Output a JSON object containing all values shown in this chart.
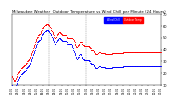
{
  "title": "Milwaukee Weather  Outdoor Temperature\nvs Wind Chill\nper Minute\n(24 Hours)",
  "bg_color": "#ffffff",
  "temp_color": "#ff0000",
  "windchill_color": "#0000ff",
  "legend_temp_label": "Outdoor Temp",
  "legend_wc_label": "Wind Chill",
  "xlim": [
    0,
    1440
  ],
  "ylim": [
    10,
    70
  ],
  "yticks": [
    10,
    20,
    30,
    40,
    50,
    60,
    70
  ],
  "ylabel_fontsize": 4,
  "xlabel_fontsize": 3,
  "title_fontsize": 3.5,
  "dot_size": 0.4,
  "vline_positions": [
    360,
    720
  ],
  "outdoor_temp": [
    18,
    17,
    16,
    15,
    14,
    14,
    13,
    13,
    14,
    15,
    16,
    17,
    18,
    19,
    20,
    21,
    21,
    22,
    22,
    23,
    23,
    24,
    24,
    24,
    25,
    25,
    25,
    26,
    26,
    26,
    27,
    27,
    27,
    28,
    28,
    29,
    29,
    30,
    30,
    31,
    31,
    32,
    32,
    33,
    34,
    35,
    36,
    37,
    38,
    39,
    40,
    41,
    42,
    43,
    44,
    45,
    46,
    47,
    48,
    49,
    50,
    51,
    51,
    52,
    52,
    52,
    53,
    53,
    53,
    54,
    55,
    56,
    57,
    58,
    58,
    59,
    59,
    60,
    60,
    61,
    61,
    61,
    61,
    62,
    62,
    62,
    62,
    62,
    61,
    61,
    60,
    59,
    59,
    58,
    57,
    57,
    56,
    56,
    55,
    54,
    53,
    52,
    51,
    50,
    50,
    50,
    51,
    51,
    52,
    53,
    53,
    54,
    54,
    55,
    55,
    55,
    55,
    54,
    54,
    53,
    53,
    52,
    52,
    52,
    52,
    52,
    52,
    52,
    52,
    52,
    52,
    52,
    51,
    51,
    50,
    50,
    50,
    50,
    50,
    50,
    50,
    50,
    50,
    50,
    50,
    50,
    50,
    49,
    49,
    48,
    47,
    46,
    45,
    44,
    43,
    42,
    42,
    42,
    42,
    43,
    44,
    44,
    45,
    45,
    46,
    46,
    46,
    46,
    46,
    45,
    45,
    44,
    44,
    44,
    43,
    43,
    43,
    43,
    43,
    43,
    43,
    43,
    43,
    43,
    43,
    43,
    43,
    42,
    42,
    41,
    41,
    40,
    40,
    40,
    40,
    40,
    40,
    39,
    39,
    38,
    37,
    36,
    36,
    36,
    36,
    36,
    36,
    37,
    37,
    38,
    38,
    38,
    38,
    38,
    37,
    37,
    37,
    37,
    37,
    37,
    37,
    37,
    37,
    37,
    37,
    36,
    36,
    36,
    36,
    36,
    36,
    36,
    36,
    36,
    36,
    36,
    36,
    36,
    36,
    36,
    36,
    36,
    37,
    37,
    37,
    37,
    37,
    37,
    37,
    37,
    37,
    37,
    37,
    37,
    37,
    37,
    37,
    37,
    37,
    37,
    37,
    37,
    37,
    37,
    37,
    37,
    37,
    37,
    37,
    38,
    38,
    38,
    38,
    38,
    38,
    38,
    38,
    38,
    38,
    38,
    38,
    38,
    38,
    38,
    38,
    38,
    38,
    38,
    38,
    38,
    38,
    38,
    38,
    38,
    38,
    38,
    38,
    38,
    38,
    38,
    38,
    38,
    38,
    38,
    38,
    38,
    38,
    38,
    38,
    38,
    38,
    38,
    38,
    38,
    38,
    38,
    38,
    38,
    38,
    38,
    38,
    38,
    38,
    38,
    38,
    38,
    38,
    38,
    38,
    38,
    38,
    38,
    38,
    38,
    38,
    38,
    38,
    38,
    38,
    38,
    38,
    38,
    38,
    38,
    38,
    38,
    38,
    38,
    38,
    38,
    38,
    38,
    38,
    38,
    38,
    38,
    38,
    38,
    38,
    38
  ],
  "wind_chill": [
    10,
    9,
    8,
    8,
    7,
    7,
    7,
    7,
    8,
    9,
    10,
    11,
    12,
    13,
    14,
    15,
    16,
    17,
    17,
    18,
    18,
    19,
    19,
    19,
    20,
    20,
    20,
    21,
    21,
    21,
    22,
    22,
    22,
    23,
    23,
    24,
    24,
    25,
    25,
    26,
    26,
    27,
    27,
    28,
    29,
    30,
    31,
    32,
    33,
    34,
    35,
    36,
    37,
    38,
    39,
    40,
    41,
    42,
    43,
    44,
    45,
    46,
    46,
    47,
    47,
    47,
    48,
    48,
    48,
    49,
    50,
    51,
    52,
    53,
    53,
    54,
    54,
    55,
    55,
    56,
    56,
    56,
    56,
    57,
    57,
    57,
    57,
    57,
    56,
    56,
    55,
    54,
    54,
    53,
    52,
    52,
    51,
    51,
    50,
    49,
    48,
    47,
    46,
    45,
    45,
    45,
    46,
    46,
    47,
    48,
    48,
    49,
    49,
    50,
    50,
    50,
    50,
    49,
    49,
    48,
    48,
    47,
    47,
    47,
    47,
    47,
    47,
    47,
    47,
    47,
    47,
    47,
    46,
    46,
    45,
    45,
    45,
    45,
    45,
    45,
    45,
    45,
    45,
    45,
    44,
    43,
    42,
    41,
    40,
    39,
    38,
    37,
    36,
    35,
    34,
    33,
    32,
    32,
    32,
    33,
    34,
    34,
    35,
    35,
    36,
    36,
    36,
    35,
    34,
    33,
    33,
    32,
    32,
    32,
    31,
    31,
    31,
    31,
    31,
    31,
    31,
    31,
    31,
    31,
    31,
    31,
    31,
    30,
    30,
    29,
    29,
    28,
    28,
    28,
    28,
    28,
    28,
    27,
    27,
    26,
    25,
    24,
    24,
    24,
    24,
    24,
    24,
    25,
    25,
    26,
    26,
    26,
    26,
    26,
    25,
    25,
    25,
    25,
    25,
    25,
    25,
    25,
    25,
    25,
    25,
    24,
    24,
    24,
    24,
    24,
    24,
    24,
    24,
    24,
    24,
    24,
    24,
    24,
    24,
    24,
    24,
    24,
    25,
    25,
    25,
    25,
    25,
    25,
    25,
    25,
    25,
    25,
    25,
    25,
    25,
    25,
    25,
    25,
    25,
    25,
    25,
    25,
    25,
    25,
    25,
    25,
    25,
    25,
    25,
    26,
    26,
    26,
    26,
    26,
    26,
    26,
    26,
    26,
    26,
    26,
    26,
    26,
    26,
    26,
    26,
    26,
    26,
    26,
    26,
    26,
    26,
    26,
    26,
    26,
    26,
    26,
    26,
    26,
    26,
    26,
    26,
    26,
    26,
    26,
    26,
    26,
    26,
    26,
    26,
    26,
    26,
    26,
    26,
    26,
    26,
    26,
    26,
    26,
    26,
    26,
    26,
    26,
    26,
    26,
    26,
    26,
    26,
    26,
    26,
    26,
    26,
    26,
    26,
    26,
    26,
    26,
    26,
    26,
    26,
    26,
    26,
    26,
    26,
    26,
    26,
    26,
    26,
    26,
    26,
    26,
    26,
    26,
    26,
    26,
    26,
    26,
    26,
    26,
    26,
    26
  ],
  "xtick_positions": [
    0,
    60,
    120,
    180,
    240,
    300,
    360,
    420,
    480,
    540,
    600,
    660,
    720,
    780,
    840,
    900,
    960,
    1020,
    1080,
    1140,
    1200,
    1260,
    1320,
    1380,
    1440
  ],
  "xtick_labels": [
    "01:01",
    "02:01",
    "03:01",
    "04:01",
    "05:01",
    "06:01",
    "07:01",
    "08:01",
    "09:01",
    "10:01",
    "11:01",
    "12:01",
    "13:01",
    "14:01",
    "15:01",
    "16:01",
    "17:01",
    "18:01",
    "19:01",
    "20:01",
    "21:01",
    "22:01",
    "23:01",
    "00:01",
    "01:01"
  ]
}
